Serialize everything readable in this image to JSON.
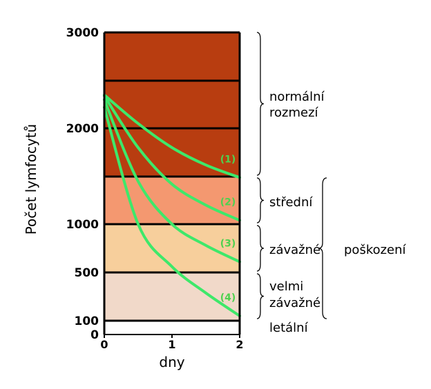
{
  "chart_data": {
    "type": "line",
    "xlabel": "dny",
    "ylabel": "Počet lymfocytů",
    "xlim": [
      0,
      2
    ],
    "x_ticks": [
      "0",
      "1",
      "2"
    ],
    "y_ticks": [
      "3000",
      "2000",
      "1000",
      "500",
      "100",
      "0"
    ],
    "zones": [
      {
        "from": 1500,
        "to": 3000,
        "label_lines": [
          "normální",
          "rozmezí"
        ],
        "color": "#b83d10"
      },
      {
        "from": 1000,
        "to": 1500,
        "label_lines": [
          "střední"
        ],
        "color": "#f49870"
      },
      {
        "from": 500,
        "to": 1000,
        "label_lines": [
          "závažné"
        ],
        "color": "#f7cf9c"
      },
      {
        "from": 100,
        "to": 500,
        "label_lines": [
          "velmi",
          "závažné"
        ],
        "color": "#f1d9c9"
      },
      {
        "from": 0,
        "to": 100,
        "label_lines": [
          "letální"
        ],
        "color": "#ffffff"
      }
    ],
    "group_label": "poškození",
    "curve_color": "#3ee86a",
    "series": [
      {
        "label": "(1)",
        "x": [
          0,
          0.5,
          1,
          1.5,
          2
        ],
        "y": [
          2350,
          2050,
          1800,
          1620,
          1490
        ]
      },
      {
        "label": "(2)",
        "x": [
          0,
          0.5,
          1,
          1.5,
          2
        ],
        "y": [
          2340,
          1800,
          1420,
          1200,
          1040
        ]
      },
      {
        "label": "(3)",
        "x": [
          0,
          0.5,
          1,
          1.5,
          2
        ],
        "y": [
          2300,
          1450,
          1000,
          780,
          610
        ]
      },
      {
        "label": "(4)",
        "x": [
          0,
          0.5,
          1,
          1.5,
          2
        ],
        "y": [
          2220,
          1000,
          560,
          330,
          140
        ]
      }
    ]
  }
}
